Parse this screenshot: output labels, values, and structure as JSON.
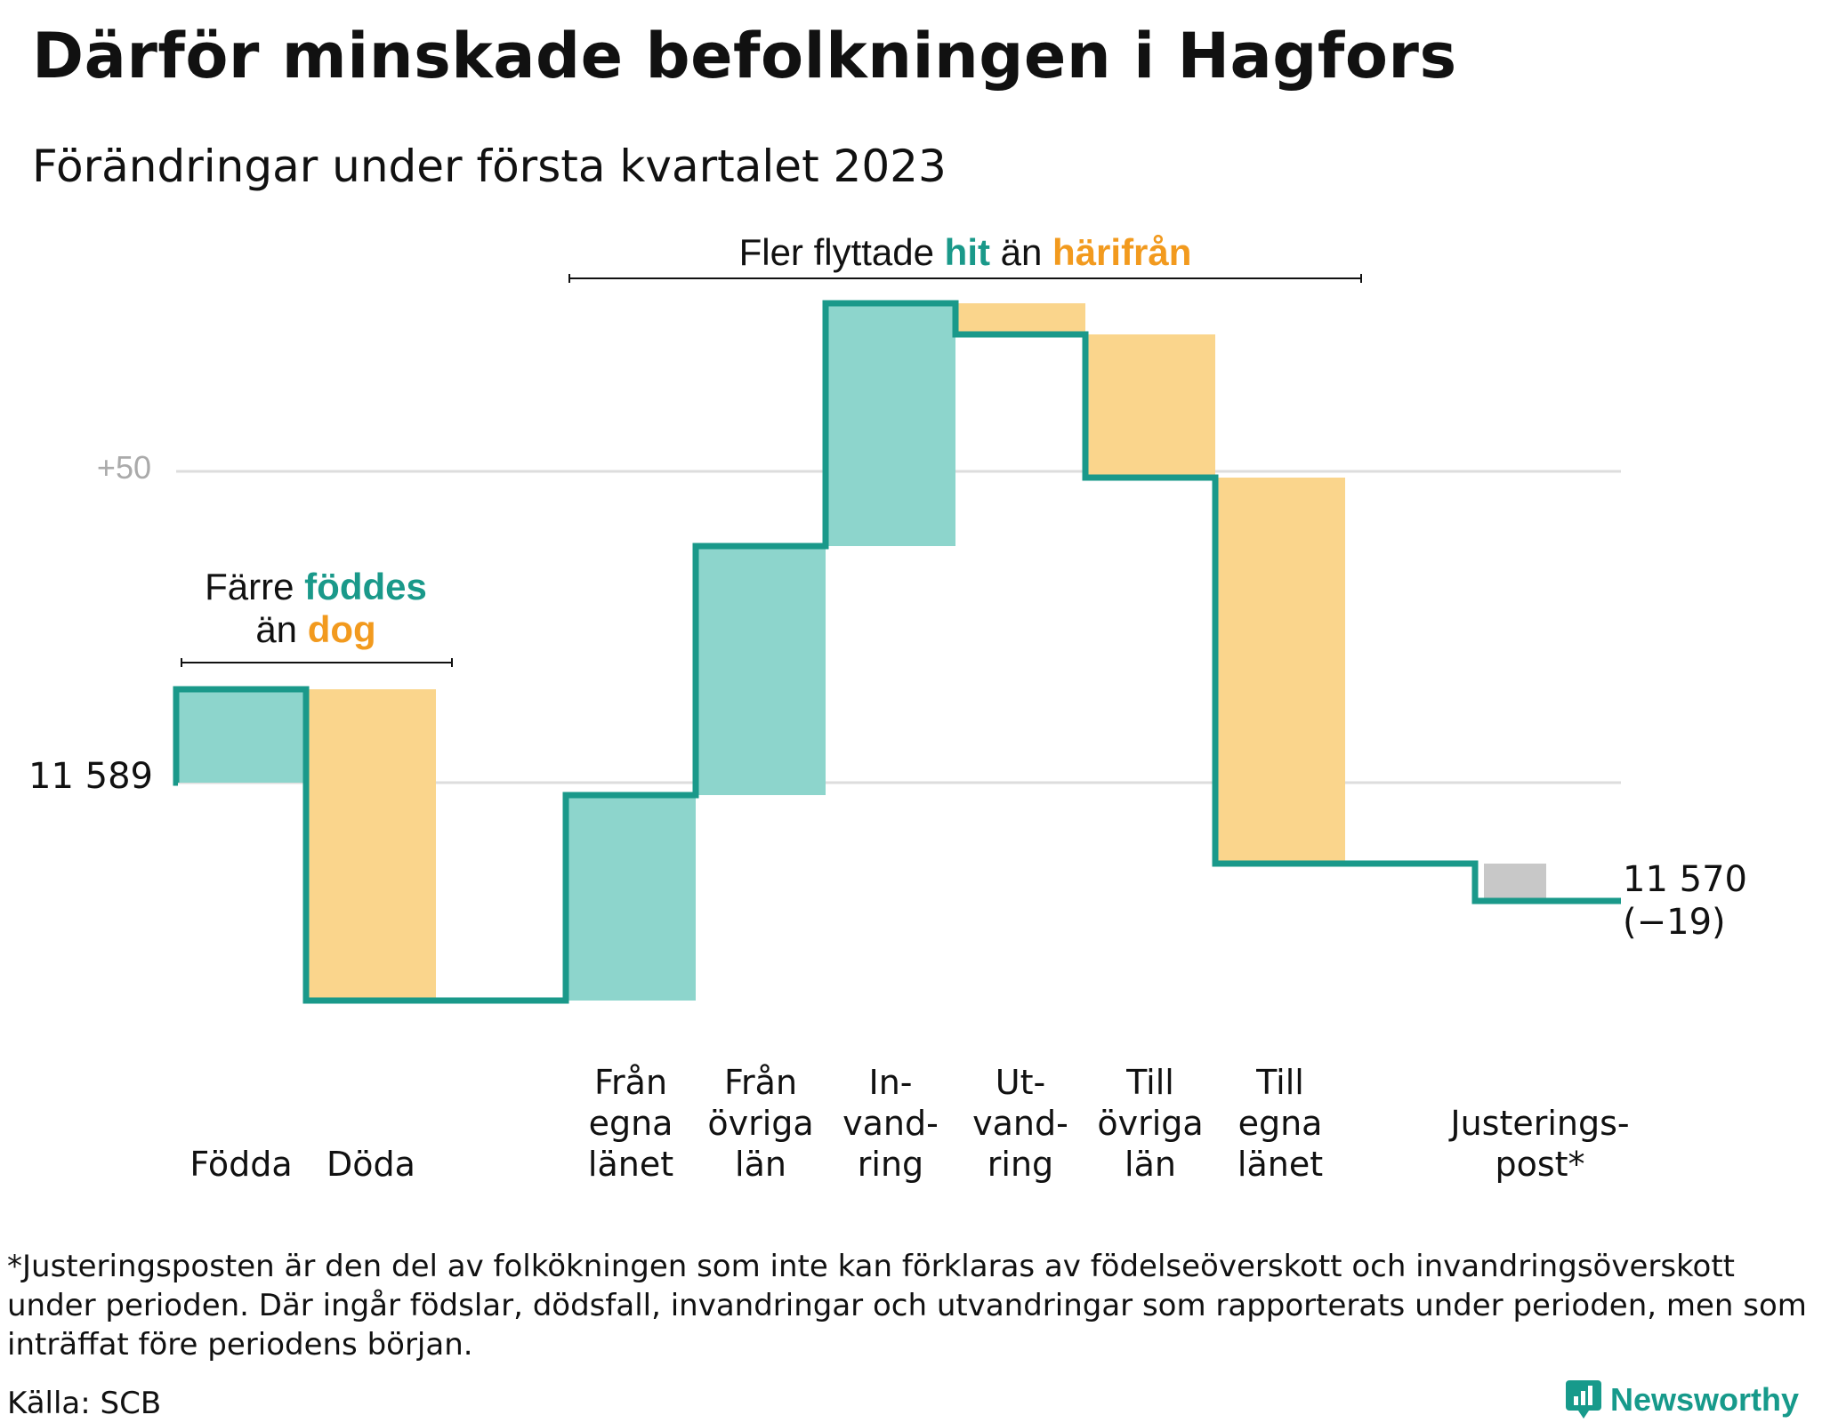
{
  "title": "Därför minskade befolkningen i Hagfors",
  "subtitle": "Förändringar under första kvartalet 2023",
  "colors": {
    "increase_fill": "#8dd5cc",
    "decrease_fill": "#fad58c",
    "adjustment_fill": "#c8c8c8",
    "line": "#1a998a",
    "teal_text": "#1a998a",
    "orange_text": "#f29a1e",
    "gridline": "#dddddd",
    "muted_text": "#aaaaaa"
  },
  "annotations": {
    "migration": {
      "prefix": "Fler flyttade ",
      "highlight1": "hit",
      "middle": " än ",
      "highlight2": "härifrån"
    },
    "births": {
      "line1_prefix": "Färre ",
      "line1_highlight": "föddes",
      "line2_prefix": "än ",
      "line2_highlight": "dog"
    }
  },
  "chart_data": {
    "type": "waterfall",
    "start_label": "11 589",
    "end_label_value": "11 570",
    "end_label_change": "(−19)",
    "y_tick_label": "+50",
    "start": 11589,
    "end": 11570,
    "steps": [
      {
        "label": [
          "Födda"
        ],
        "change": 15,
        "kind": "increase"
      },
      {
        "label": [
          "Döda"
        ],
        "change": -50,
        "kind": "decrease"
      },
      {
        "label": [],
        "change": 0,
        "kind": "gap"
      },
      {
        "label": [
          "Från",
          "egna",
          "länet"
        ],
        "change": 33,
        "kind": "increase"
      },
      {
        "label": [
          "Från",
          "övriga",
          "län"
        ],
        "change": 40,
        "kind": "increase"
      },
      {
        "label": [
          "In-",
          "vand-",
          "ring"
        ],
        "change": 39,
        "kind": "increase"
      },
      {
        "label": [
          "Ut-",
          "vand-",
          "ring"
        ],
        "change": -5,
        "kind": "decrease"
      },
      {
        "label": [
          "Till",
          "övriga",
          "län"
        ],
        "change": -23,
        "kind": "decrease"
      },
      {
        "label": [
          "Till",
          "egna",
          "länet"
        ],
        "change": -62,
        "kind": "decrease"
      },
      {
        "label": [],
        "change": 0,
        "kind": "gap"
      },
      {
        "label": [
          "Justerings-",
          "post*"
        ],
        "change": -6,
        "kind": "adjustment"
      }
    ]
  },
  "footnote": "*Justeringsposten är den del av folkökningen som inte kan förklaras av födelseöverskott och invandringsöverskott under perioden. Där ingår födslar, dödsfall, invandringar och utvandringar som rapporterats under perioden, men som inträffat före periodens början.",
  "source": "Källa: SCB",
  "brand": "Newsworthy"
}
